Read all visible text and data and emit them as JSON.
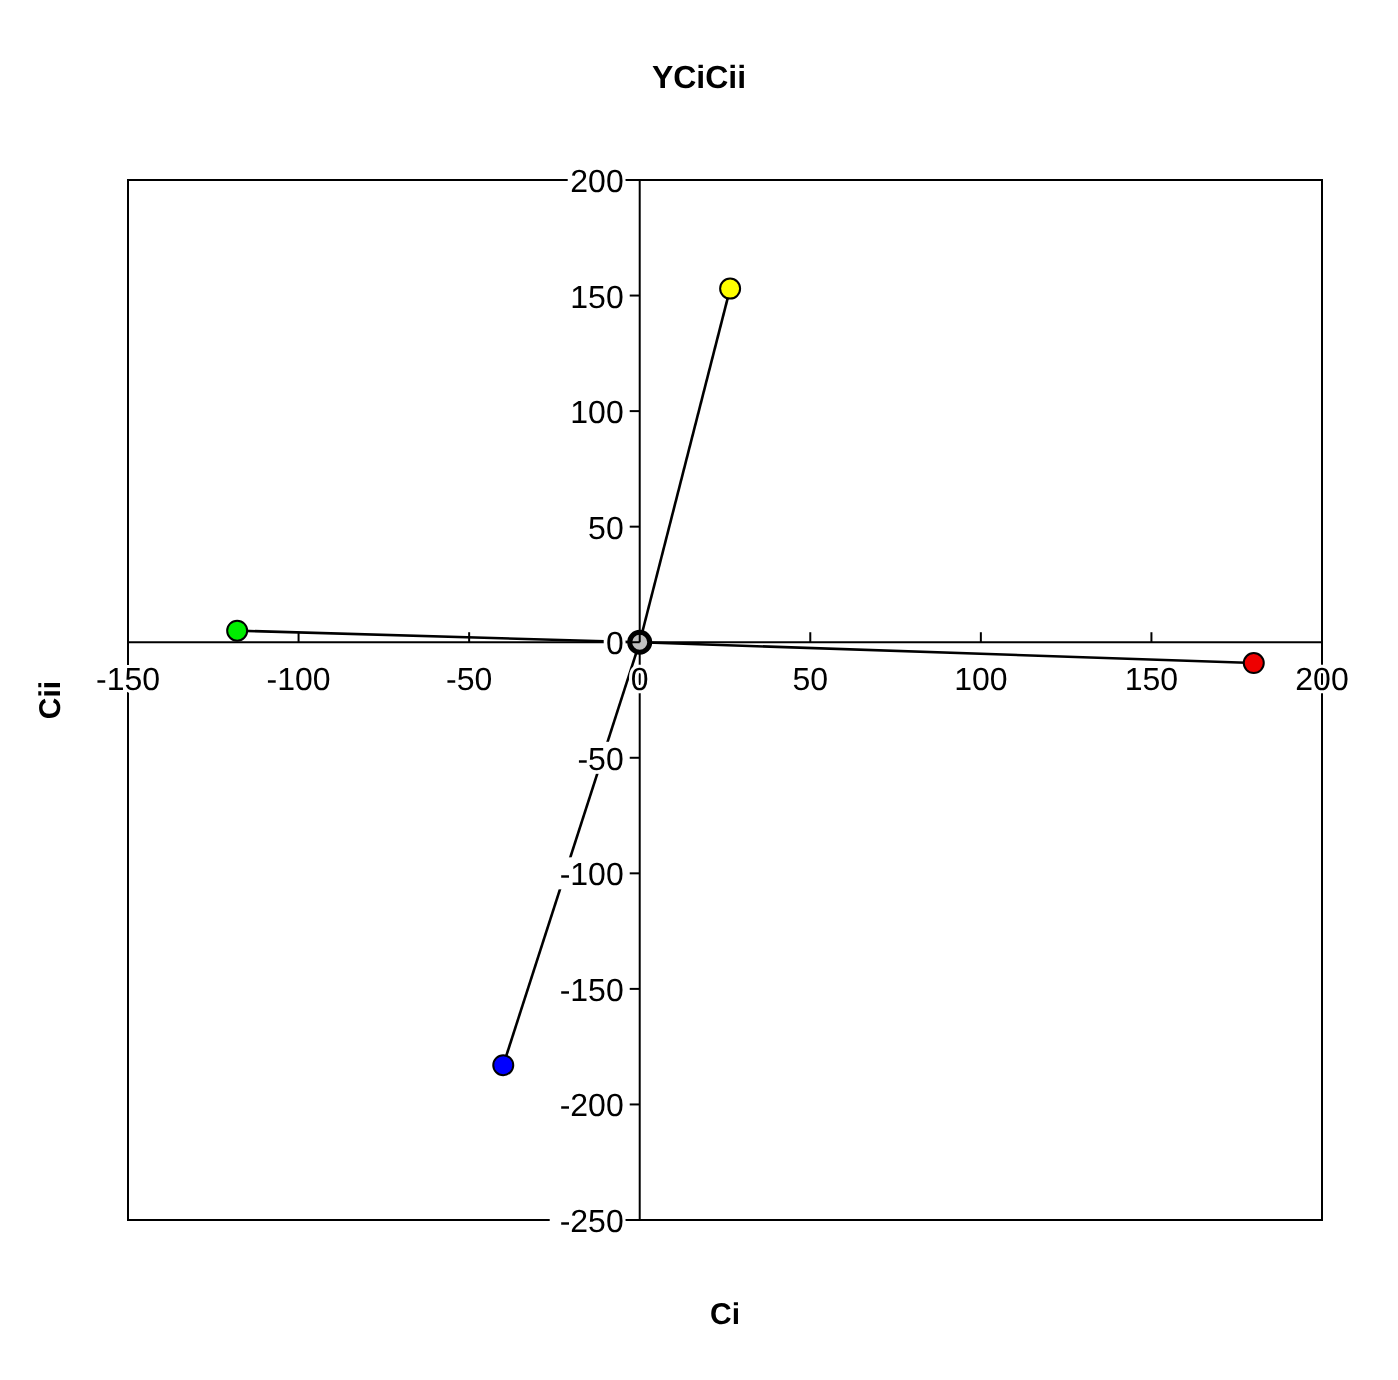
{
  "chart_data": {
    "type": "line",
    "title": "YCiCii",
    "xlabel": "Ci",
    "ylabel": "Cii",
    "xlim": [
      -150,
      200
    ],
    "ylim": [
      -250,
      200
    ],
    "xticks": [
      -150,
      -100,
      -50,
      0,
      50,
      100,
      150,
      200
    ],
    "yticks": [
      -250,
      -200,
      -150,
      -100,
      -50,
      0,
      50,
      100,
      150,
      200
    ],
    "marker": "circle",
    "series": [
      {
        "color": "#000000",
        "x": [
          0,
          -118
        ],
        "values": [
          0,
          5
        ],
        "marker": "none"
      },
      {
        "color": "#000000",
        "x": [
          0,
          180
        ],
        "values": [
          0,
          -9
        ],
        "marker": "none"
      },
      {
        "color": "#000000",
        "x": [
          0,
          26.5
        ],
        "values": [
          0,
          153
        ],
        "marker": "none"
      },
      {
        "color": "#000000",
        "x": [
          0,
          -40
        ],
        "values": [
          0,
          -183
        ],
        "marker": "none"
      },
      {
        "type": "scatter",
        "x": [
          -118,
          180,
          26.5,
          -40,
          0
        ],
        "values": [
          5,
          -9,
          153,
          -183,
          0
        ],
        "colors": [
          "#00ee00",
          "#ee0000",
          "#ffff00",
          "#0000ff",
          "#c0c0c0"
        ]
      }
    ]
  }
}
